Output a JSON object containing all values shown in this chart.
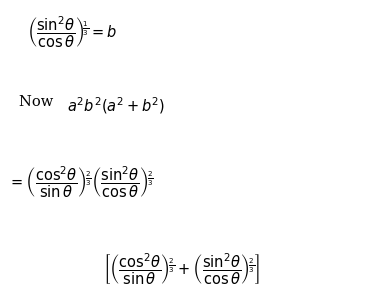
{
  "background_color": "#ffffff",
  "text_color": "#000000",
  "line1": "$\\left(\\dfrac{\\sin^2\\!\\theta}{\\cos\\theta}\\right)^{\\!\\frac{1}{3}} = b$",
  "line2_normal": "Now ",
  "line2_math": "$a^2 b^2 (a^2 + b^2)$",
  "line3": "$= \\left(\\dfrac{\\cos^2\\!\\theta}{\\sin\\theta}\\right)^{\\!\\frac{2}{3}} \\left(\\dfrac{\\sin^2\\!\\theta}{\\cos\\theta}\\right)^{\\!\\frac{2}{3}}$",
  "line4": "$\\left[\\left(\\dfrac{\\cos^2\\!\\theta}{\\sin\\theta}\\right)^{\\!\\frac{2}{3}} + \\left(\\dfrac{\\sin^2\\!\\theta}{\\cos\\theta}\\right)^{\\!\\frac{2}{3}}\\right]$",
  "figsize": [
    3.81,
    2.89
  ],
  "dpi": 100,
  "fontsize": 10.5
}
